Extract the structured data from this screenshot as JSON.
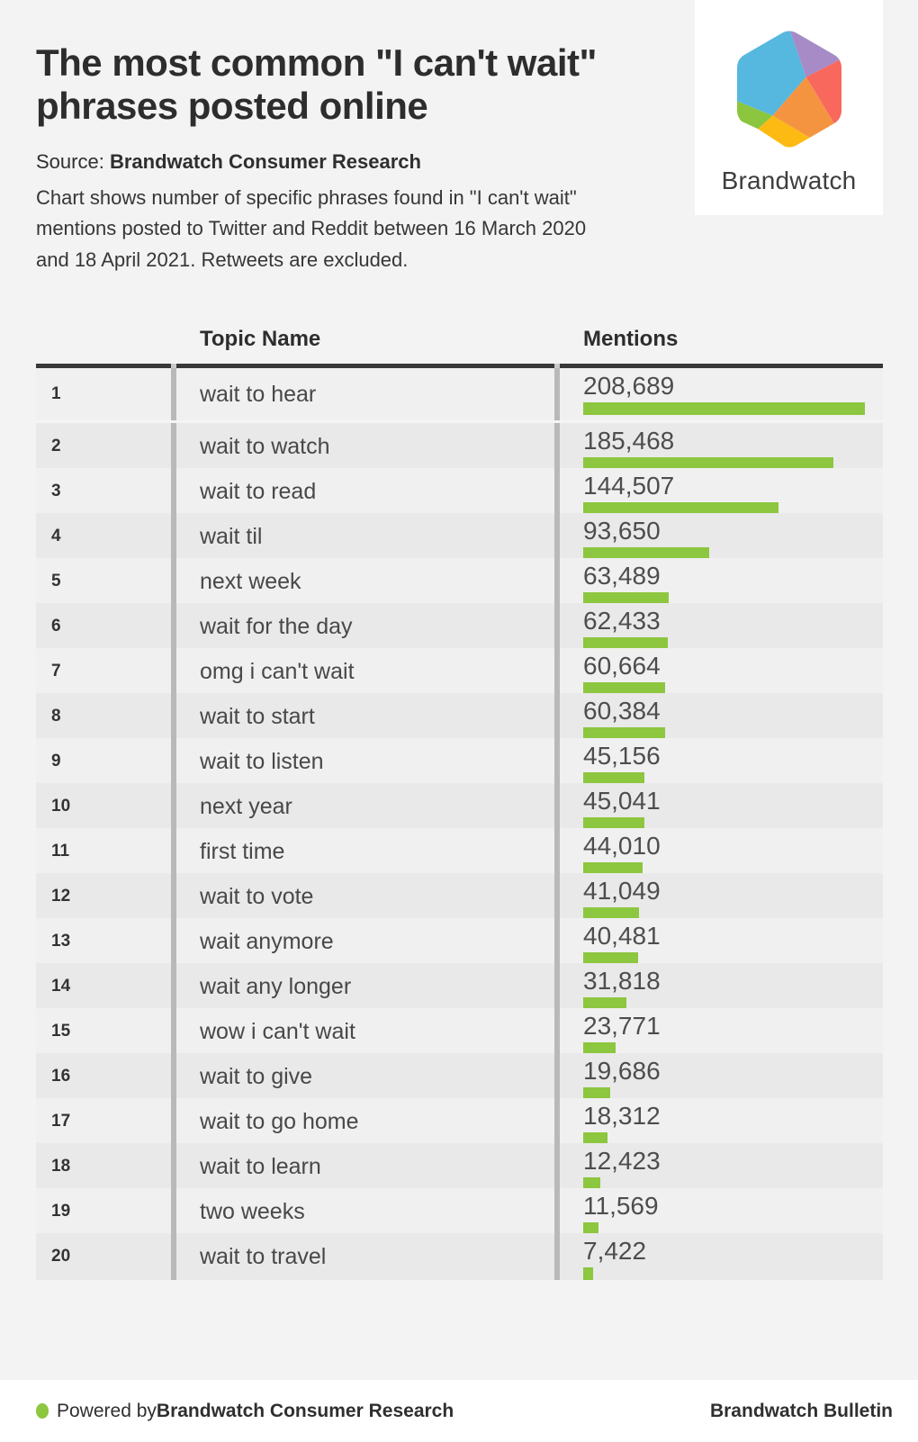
{
  "header": {
    "title": "The most common \"I can't wait\"\nphrases posted online",
    "source_label": "Source:",
    "source_value": "Brandwatch Consumer Research",
    "description": "Chart shows number of specific phrases found in \"I can't wait\"\nmentions posted to Twitter and Reddit between 16 March 2020\nand 18 April 2021. Retweets are excluded.",
    "logo_text": "Brandwatch"
  },
  "table": {
    "col_topic": "Topic Name",
    "col_mentions": "Mentions",
    "rows": [
      {
        "rank": "1",
        "topic": "wait to hear",
        "mentions": "208,689",
        "value": 208689
      },
      {
        "rank": "2",
        "topic": "wait to watch",
        "mentions": "185,468",
        "value": 185468
      },
      {
        "rank": "3",
        "topic": "wait to read",
        "mentions": "144,507",
        "value": 144507
      },
      {
        "rank": "4",
        "topic": "wait til",
        "mentions": "93,650",
        "value": 93650
      },
      {
        "rank": "5",
        "topic": "next week",
        "mentions": "63,489",
        "value": 63489
      },
      {
        "rank": "6",
        "topic": "wait for the day",
        "mentions": "62,433",
        "value": 62433
      },
      {
        "rank": "7",
        "topic": "omg i can't wait",
        "mentions": "60,664",
        "value": 60664
      },
      {
        "rank": "8",
        "topic": "wait to start",
        "mentions": "60,384",
        "value": 60384
      },
      {
        "rank": "9",
        "topic": "wait to listen",
        "mentions": "45,156",
        "value": 45156
      },
      {
        "rank": "10",
        "topic": "next year",
        "mentions": "45,041",
        "value": 45041
      },
      {
        "rank": "11",
        "topic": "first time",
        "mentions": "44,010",
        "value": 44010
      },
      {
        "rank": "12",
        "topic": "wait to vote",
        "mentions": "41,049",
        "value": 41049
      },
      {
        "rank": "13",
        "topic": "wait anymore",
        "mentions": "40,481",
        "value": 40481
      },
      {
        "rank": "14",
        "topic": "wait any longer",
        "mentions": "31,818",
        "value": 31818
      },
      {
        "rank": "15",
        "topic": "wow i can't wait",
        "mentions": "23,771",
        "value": 23771
      },
      {
        "rank": "16",
        "topic": "wait to give",
        "mentions": "19,686",
        "value": 19686
      },
      {
        "rank": "17",
        "topic": "wait to go home",
        "mentions": "18,312",
        "value": 18312
      },
      {
        "rank": "18",
        "topic": "wait to learn",
        "mentions": "12,423",
        "value": 12423
      },
      {
        "rank": "19",
        "topic": "two weeks",
        "mentions": "11,569",
        "value": 11569
      },
      {
        "rank": "20",
        "topic": "wait to travel",
        "mentions": "7,422",
        "value": 7422
      }
    ]
  },
  "chart_data": {
    "type": "bar",
    "orientation": "horizontal",
    "title": "The most common \"I can't wait\" phrases posted online",
    "source": "Brandwatch Consumer Research",
    "note": "Chart shows number of specific phrases found in \"I can't wait\" mentions posted to Twitter and Reddit between 16 March 2020 and 18 April 2021. Retweets are excluded.",
    "columns": [
      "Topic Name",
      "Mentions"
    ],
    "categories": [
      "wait to hear",
      "wait to watch",
      "wait to read",
      "wait til",
      "next week",
      "wait for the day",
      "omg i can't wait",
      "wait to start",
      "wait to listen",
      "next year",
      "first time",
      "wait to vote",
      "wait anymore",
      "wait any longer",
      "wow i can't wait",
      "wait to give",
      "wait to go home",
      "wait to learn",
      "two weeks",
      "wait to travel"
    ],
    "values": [
      208689,
      185468,
      144507,
      93650,
      63489,
      62433,
      60664,
      60384,
      45156,
      45041,
      44010,
      41049,
      40481,
      31818,
      23771,
      19686,
      18312,
      12423,
      11569,
      7422
    ],
    "ranks": [
      1,
      2,
      3,
      4,
      5,
      6,
      7,
      8,
      9,
      10,
      11,
      12,
      13,
      14,
      15,
      16,
      17,
      18,
      19,
      20
    ],
    "xlim": [
      0,
      208689
    ],
    "bar_color": "#8dc63f",
    "grid": false,
    "legend": false
  },
  "footer": {
    "powered_prefix": "Powered by ",
    "powered_brand": "Brandwatch Consumer Research",
    "right_text": "Brandwatch Bulletin"
  },
  "colors": {
    "background": "#f3f3f3",
    "row_odd": "#f0f0f0",
    "row_even": "#e9e9e9",
    "divider": "#b9b9b9",
    "header_rule": "#383838",
    "bar_green": "#8dc63f",
    "logo_blue": "#56b7df",
    "logo_purple": "#a68bc7",
    "logo_red": "#f8685c",
    "logo_orange": "#f59440",
    "logo_yellow": "#fcba13",
    "logo_green": "#8cc63e"
  }
}
